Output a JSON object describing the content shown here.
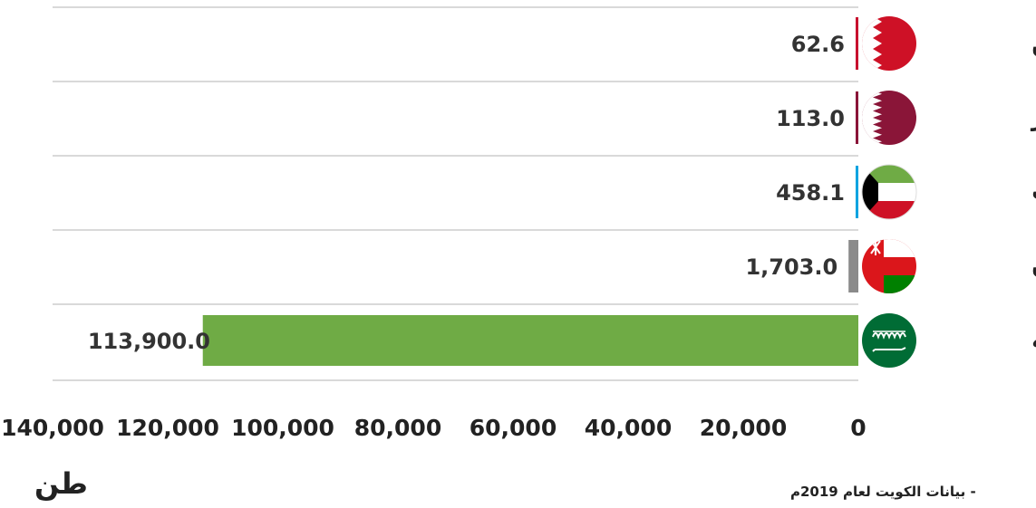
{
  "chart_data": {
    "type": "bar",
    "orientation": "horizontal",
    "categories": [
      "البحرين",
      "قطر",
      "الكويت",
      "عُمان",
      "السعودية"
    ],
    "values": [
      62.6,
      113.0,
      458.1,
      1703.0,
      113900.0
    ],
    "value_labels": [
      "62.6",
      "113.0",
      "458.1",
      "1,703.0",
      "113,900.0"
    ],
    "colors": [
      "#c8102e",
      "#8a1538",
      "#00a3e0",
      "#8a8a8a",
      "#6fab45"
    ],
    "flags": [
      "bahrain-flag-icon",
      "qatar-flag-icon",
      "kuwait-flag-icon",
      "oman-flag-icon",
      "saudi-flag-icon"
    ],
    "xlim": [
      0,
      140000
    ],
    "x_reversed": true,
    "ticks": [
      "0",
      "20,000",
      "40,000",
      "60,000",
      "80,000",
      "100,000",
      "120,000",
      "140,000"
    ],
    "tick_values": [
      0,
      20000,
      40000,
      60000,
      80000,
      100000,
      120000,
      140000
    ],
    "xlabel": "طن",
    "grid": "horizontal separators"
  },
  "footnote": "- بيانات الكويت لعام 2019م"
}
